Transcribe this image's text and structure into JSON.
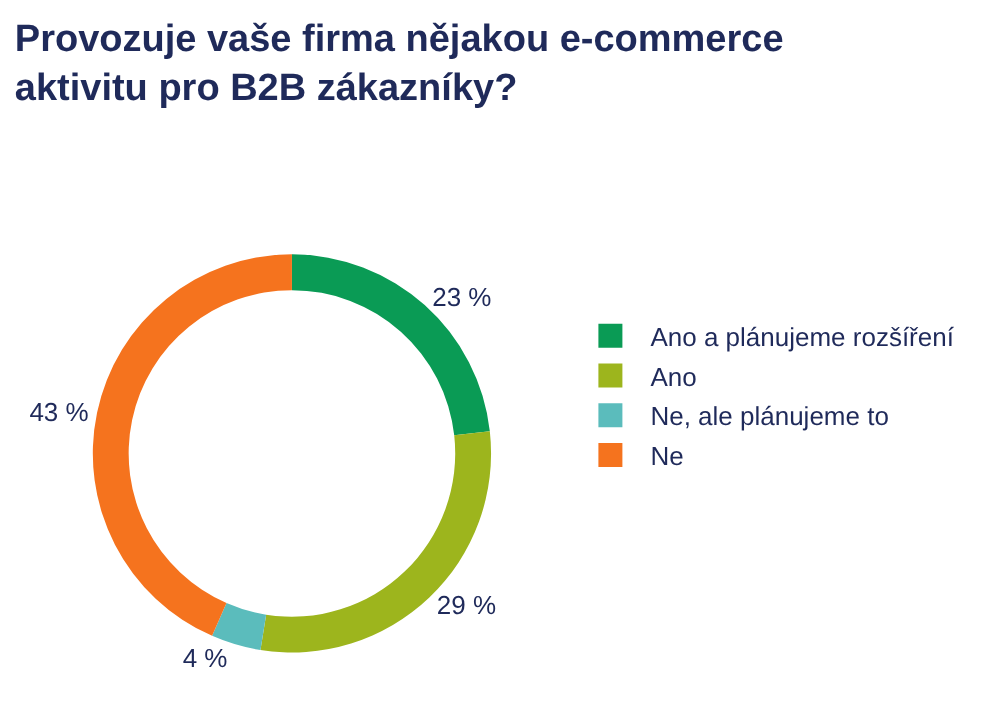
{
  "chart_data": {
    "type": "donut",
    "title": "Provozuje vaše firma nějakou e-commerce aktivitu pro B2B zákazníky?",
    "categories": [
      "Ano a plánujeme rozšíření",
      "Ano",
      "Ne, ale plánujeme to",
      "Ne"
    ],
    "values": [
      23,
      29,
      4,
      43
    ],
    "value_labels": [
      "23 %",
      "29 %",
      "4 %",
      "43 %"
    ],
    "colors": [
      "#0a9b55",
      "#9db51d",
      "#5bbcbc",
      "#f5731e"
    ],
    "legend": "right"
  }
}
